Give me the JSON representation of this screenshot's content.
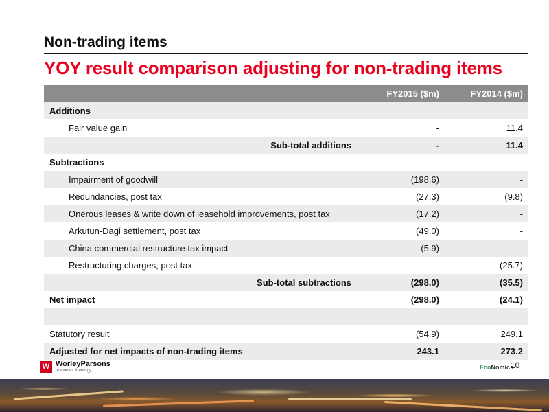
{
  "header": {
    "title": "Non-trading items",
    "subtitle": "YOY result comparison adjusting for non-trading items"
  },
  "table": {
    "columns": [
      "",
      "FY2015 ($m)",
      "FY2014 ($m)"
    ],
    "rows": [
      {
        "label": "Additions",
        "fy2015": "",
        "fy2014": ""
      },
      {
        "label": "Fair value gain",
        "fy2015": "-",
        "fy2014": "11.4"
      },
      {
        "label": "Sub-total additions",
        "fy2015": "-",
        "fy2014": "11.4"
      },
      {
        "label": "Subtractions",
        "fy2015": "",
        "fy2014": ""
      },
      {
        "label": "Impairment of goodwill",
        "fy2015": "(198.6)",
        "fy2014": "-"
      },
      {
        "label": "Redundancies, post tax",
        "fy2015": "(27.3)",
        "fy2014": "(9.8)"
      },
      {
        "label": "Onerous leases & write down of leasehold improvements, post tax",
        "fy2015": "(17.2)",
        "fy2014": "-"
      },
      {
        "label": "Arkutun-Dagi settlement, post tax",
        "fy2015": "(49.0)",
        "fy2014": "-"
      },
      {
        "label": "China commercial restructure tax impact",
        "fy2015": "(5.9)",
        "fy2014": "-"
      },
      {
        "label": "Restructuring charges, post tax",
        "fy2015": "-",
        "fy2014": "(25.7)"
      },
      {
        "label": "Sub-total subtractions",
        "fy2015": "(298.0)",
        "fy2014": "(35.5)"
      },
      {
        "label": "Net impact",
        "fy2015": "(298.0)",
        "fy2014": "(24.1)"
      },
      {
        "label": "",
        "fy2015": "",
        "fy2014": ""
      },
      {
        "label": "Statutory result",
        "fy2015": "(54.9)",
        "fy2014": "249.1"
      },
      {
        "label": "Adjusted for net impacts of non-trading items",
        "fy2015": "243.1",
        "fy2014": "273.2"
      }
    ]
  },
  "footer": {
    "logo_mark": "W",
    "logo_name": "WorleyParsons",
    "logo_tagline": "resources & energy",
    "eco_logo_prefix": "Eco",
    "eco_logo_suffix": "Nomics",
    "page_number": "10"
  },
  "colors": {
    "accent": "#e8001e",
    "header_row": "#8c8c8c",
    "shade_row": "#ebebeb"
  }
}
